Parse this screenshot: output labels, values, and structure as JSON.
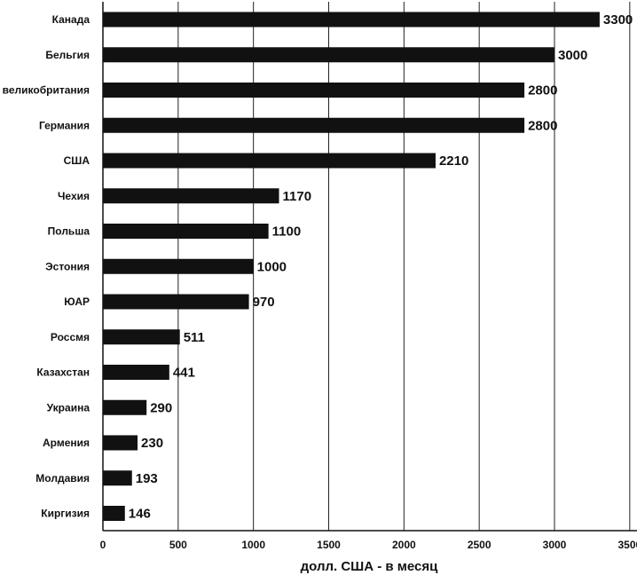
{
  "chart_data": {
    "type": "bar",
    "orientation": "horizontal",
    "categories": [
      "Канада",
      "Бельгия",
      "Великобритания",
      "Германия",
      "США",
      "Чехия",
      "Польша",
      "Эстония",
      "ЮАР",
      "Россия",
      "Казахстан",
      "Украина",
      "Армения",
      "Молдавия",
      "Киргизия"
    ],
    "values": [
      3300,
      3000,
      2800,
      2800,
      2210,
      1170,
      1100,
      1000,
      970,
      511,
      441,
      290,
      230,
      193,
      146
    ],
    "category_labels": [
      "Канада",
      "Бельгия",
      "великобритания",
      "Германия",
      "США",
      "Чехия",
      "Польша",
      "Эстония",
      "ЮАР",
      "Россмя",
      "Казахстан",
      "Украина",
      "Армения",
      "Молдавия",
      "Киргизия"
    ],
    "value_labels": [
      "3300",
      "3000",
      "2800",
      "2800",
      "2210",
      "1170",
      "1100",
      "1000",
      "970",
      "511",
      "441",
      "290",
      "230",
      "193",
      "146"
    ],
    "xlabel": "долл. США - в месяц",
    "ylabel": "",
    "title": "",
    "xlim": [
      0,
      3500
    ],
    "xticks": [
      0,
      500,
      1000,
      1500,
      2000,
      2500,
      3000,
      3500
    ],
    "xtick_labels": [
      "0",
      "500",
      "1000",
      "1500",
      "2000",
      "2500",
      "3000",
      "3500"
    ],
    "grid": "vertical",
    "legend": "none",
    "bar_color": "#111111"
  }
}
